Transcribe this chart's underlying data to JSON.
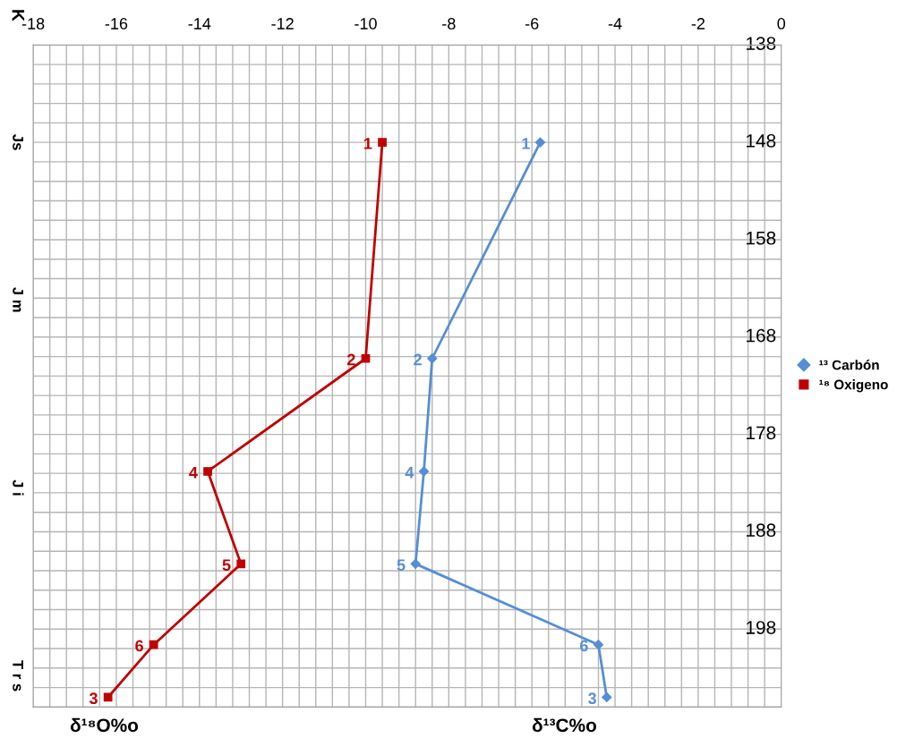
{
  "chart_data": {
    "type": "line",
    "series": [
      {
        "name": "¹³ Carbón",
        "color": "#558ed5",
        "marker": "diamond",
        "x": [
          -5.8,
          -8.4,
          -8.6,
          -8.8,
          -4.4,
          -4.2
        ],
        "values": [
          148,
          170.2,
          181.8,
          191.3,
          199.6,
          205
        ]
      },
      {
        "name": "¹⁸ Oxigeno",
        "color": "#c00000",
        "marker": "square",
        "x": [
          -9.6,
          -10,
          -13.8,
          -13,
          -15.1,
          -16.2
        ],
        "values": [
          148,
          170.2,
          181.8,
          191.3,
          199.6,
          205
        ]
      }
    ],
    "xlim": [
      -18,
      0
    ],
    "xticks": [
      -18,
      {
        "value": -17.6,
        "label": null
      },
      {
        "value": -17.2,
        "label": null
      },
      {
        "value": -16.8,
        "label": null
      },
      {
        "value": -16.4,
        "label": null
      },
      -16,
      {
        "value": -15.6,
        "label": null
      },
      {
        "value": -15.2,
        "label": null
      },
      {
        "value": -14.8,
        "label": null
      },
      {
        "value": -14.4,
        "label": null
      },
      -14,
      {
        "value": -13.6,
        "label": null
      },
      {
        "value": -13.2,
        "label": null
      },
      {
        "value": -12.8,
        "label": null
      },
      {
        "value": -12.4,
        "label": null
      },
      -12,
      {
        "value": -11.6,
        "label": null
      },
      {
        "value": -11.2,
        "label": null
      },
      {
        "value": -10.8,
        "label": null
      },
      {
        "value": -10.4,
        "label": null
      },
      -10,
      {
        "value": -9.6,
        "label": null
      },
      {
        "value": -9.2,
        "label": null
      },
      {
        "value": -8.8,
        "label": null
      },
      {
        "value": -8.4,
        "label": null
      },
      -8,
      {
        "value": -7.6,
        "label": null
      },
      {
        "value": -7.2,
        "label": null
      },
      {
        "value": -6.8,
        "label": null
      },
      {
        "value": -6.4,
        "label": null
      },
      -6,
      {
        "value": -5.6,
        "label": null
      },
      {
        "value": -5.2,
        "label": null
      },
      {
        "value": -4.8,
        "label": null
      },
      {
        "value": -4.4,
        "label": null
      },
      -4,
      {
        "value": -3.6,
        "label": null
      },
      {
        "value": -3.2,
        "label": null
      },
      {
        "value": -2.8,
        "label": null
      },
      {
        "value": -2.4,
        "label": null
      },
      -2,
      {
        "value": -1.6,
        "label": null
      },
      {
        "value": -1.2,
        "label": null
      },
      {
        "value": -0.8,
        "label": null
      },
      {
        "value": -0.4,
        "label": null
      },
      0
    ],
    "ylim": [
      206,
      138
    ],
    "yticks": [
      138,
      {
        "value": 140,
        "label": null
      },
      {
        "value": 142,
        "label": null
      },
      {
        "value": 144,
        "label": null
      },
      {
        "value": 146,
        "label": null
      },
      148,
      {
        "value": 150,
        "label": null
      },
      {
        "value": 152,
        "label": null
      },
      {
        "value": 154,
        "label": null
      },
      {
        "value": 156,
        "label": null
      },
      158,
      {
        "value": 160,
        "label": null
      },
      {
        "value": 162,
        "label": null
      },
      {
        "value": 164,
        "label": null
      },
      {
        "value": 166,
        "label": null
      },
      168,
      {
        "value": 170,
        "label": null
      },
      {
        "value": 172,
        "label": null
      },
      {
        "value": 174,
        "label": null
      },
      {
        "value": 176,
        "label": null
      },
      178,
      {
        "value": 180,
        "label": null
      },
      {
        "value": 182,
        "label": null
      },
      {
        "value": 184,
        "label": null
      },
      {
        "value": 186,
        "label": null
      },
      188,
      {
        "value": 190,
        "label": null
      },
      {
        "value": 192,
        "label": null
      },
      {
        "value": 194,
        "label": null
      },
      {
        "value": 196,
        "label": null
      },
      198,
      {
        "value": 200,
        "label": null
      },
      {
        "value": 202,
        "label": null
      },
      {
        "value": 204,
        "label": null
      },
      {
        "value": 206,
        "label": null
      }
    ],
    "grid": true,
    "legend": "right",
    "line_style": "solid",
    "annotations": [
      "K",
      "Js",
      "J m",
      "J i",
      "T r s",
      "δ¹⁸O%o",
      "δ¹³C%o",
      {
        "text": "1",
        "x": -5.8,
        "y": 148
      },
      {
        "text": "2",
        "x": -8.4,
        "y": 170.2
      },
      {
        "text": "4",
        "x": -8.6,
        "y": 181.8
      },
      {
        "text": "5",
        "x": -8.8,
        "y": 191.3
      },
      {
        "text": "6",
        "x": -4.4,
        "y": 199.6
      },
      {
        "text": "3",
        "x": -4.2,
        "y": 205
      },
      {
        "text": "1",
        "x": -9.6,
        "y": 148
      },
      {
        "text": "2",
        "x": -10,
        "y": 170.2
      },
      {
        "text": "4",
        "x": -13.8,
        "y": 181.8
      },
      {
        "text": "5",
        "x": -13,
        "y": 191.3
      },
      {
        "text": "6",
        "x": -15.1,
        "y": 199.6
      },
      {
        "text": "3",
        "x": -16.2,
        "y": 205
      }
    ]
  }
}
